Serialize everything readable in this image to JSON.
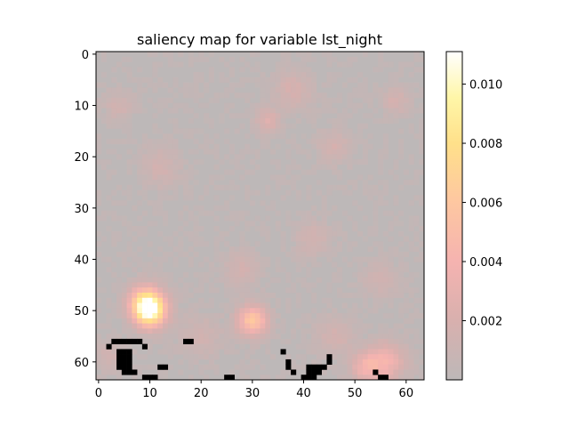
{
  "chart_data": {
    "type": "heatmap",
    "title": "saliency map for variable lst_night",
    "grid_size": 64,
    "xlim": [
      -0.5,
      63.5
    ],
    "ylim": [
      63.5,
      -0.5
    ],
    "x_ticks": [
      0,
      10,
      20,
      30,
      40,
      50,
      60
    ],
    "y_ticks": [
      0,
      10,
      20,
      30,
      40,
      50,
      60
    ],
    "colorbar": {
      "cmap": "hot (alpha overlay on gray)",
      "range": [
        0.0,
        0.0111
      ],
      "ticks": [
        0.002,
        0.004,
        0.006,
        0.008,
        0.01
      ],
      "tick_labels": [
        "0.002",
        "0.004",
        "0.006",
        "0.008",
        "0.010"
      ]
    },
    "base_color": "#bdb8b8",
    "hotspots": [
      {
        "x": 10,
        "y": 50,
        "value": 0.0105,
        "spread": 2.2
      },
      {
        "x": 30,
        "y": 52,
        "value": 0.0058,
        "spread": 2.0
      },
      {
        "x": 9,
        "y": 48,
        "value": 0.0045,
        "spread": 2.2
      },
      {
        "x": 56,
        "y": 60,
        "value": 0.0036,
        "spread": 2.6
      },
      {
        "x": 52,
        "y": 61,
        "value": 0.003,
        "spread": 2.0
      },
      {
        "x": 33,
        "y": 13,
        "value": 0.0022,
        "spread": 1.6
      },
      {
        "x": 38,
        "y": 7,
        "value": 0.0016,
        "spread": 2.5
      },
      {
        "x": 46,
        "y": 18,
        "value": 0.0014,
        "spread": 2.2
      },
      {
        "x": 12,
        "y": 22,
        "value": 0.0013,
        "spread": 2.6
      },
      {
        "x": 4,
        "y": 10,
        "value": 0.0012,
        "spread": 2.0
      },
      {
        "x": 28,
        "y": 42,
        "value": 0.0013,
        "spread": 2.4
      },
      {
        "x": 42,
        "y": 36,
        "value": 0.0012,
        "spread": 2.4
      },
      {
        "x": 58,
        "y": 9,
        "value": 0.0015,
        "spread": 1.8
      },
      {
        "x": 46,
        "y": 55,
        "value": 0.0014,
        "spread": 2.6
      },
      {
        "x": 20,
        "y": 55,
        "value": 0.0011,
        "spread": 2.8
      },
      {
        "x": 55,
        "y": 44,
        "value": 0.0011,
        "spread": 2.4
      },
      {
        "x": 2,
        "y": 59,
        "value": 0.0012,
        "spread": 2.0
      }
    ],
    "masked_cells": [
      [
        2,
        57
      ],
      [
        3,
        56
      ],
      [
        4,
        56
      ],
      [
        5,
        56
      ],
      [
        6,
        56
      ],
      [
        7,
        56
      ],
      [
        8,
        56
      ],
      [
        9,
        57
      ],
      [
        4,
        58
      ],
      [
        5,
        58
      ],
      [
        6,
        58
      ],
      [
        4,
        59
      ],
      [
        5,
        59
      ],
      [
        6,
        59
      ],
      [
        4,
        60
      ],
      [
        5,
        60
      ],
      [
        6,
        60
      ],
      [
        4,
        61
      ],
      [
        5,
        61
      ],
      [
        6,
        61
      ],
      [
        5,
        62
      ],
      [
        6,
        62
      ],
      [
        7,
        62
      ],
      [
        9,
        64
      ],
      [
        10,
        64
      ],
      [
        11,
        64
      ],
      [
        12,
        61
      ],
      [
        13,
        61
      ],
      [
        17,
        56
      ],
      [
        18,
        56
      ],
      [
        25,
        64
      ],
      [
        26,
        64
      ],
      [
        36,
        58
      ],
      [
        37,
        60
      ],
      [
        37,
        61
      ],
      [
        38,
        62
      ],
      [
        41,
        61
      ],
      [
        42,
        61
      ],
      [
        43,
        61
      ],
      [
        41,
        62
      ],
      [
        42,
        62
      ],
      [
        43,
        62
      ],
      [
        40,
        63
      ],
      [
        41,
        63
      ],
      [
        42,
        63
      ],
      [
        44,
        61
      ],
      [
        45,
        60
      ],
      [
        45,
        59
      ],
      [
        54,
        62
      ],
      [
        55,
        64
      ],
      [
        56,
        64
      ]
    ]
  }
}
